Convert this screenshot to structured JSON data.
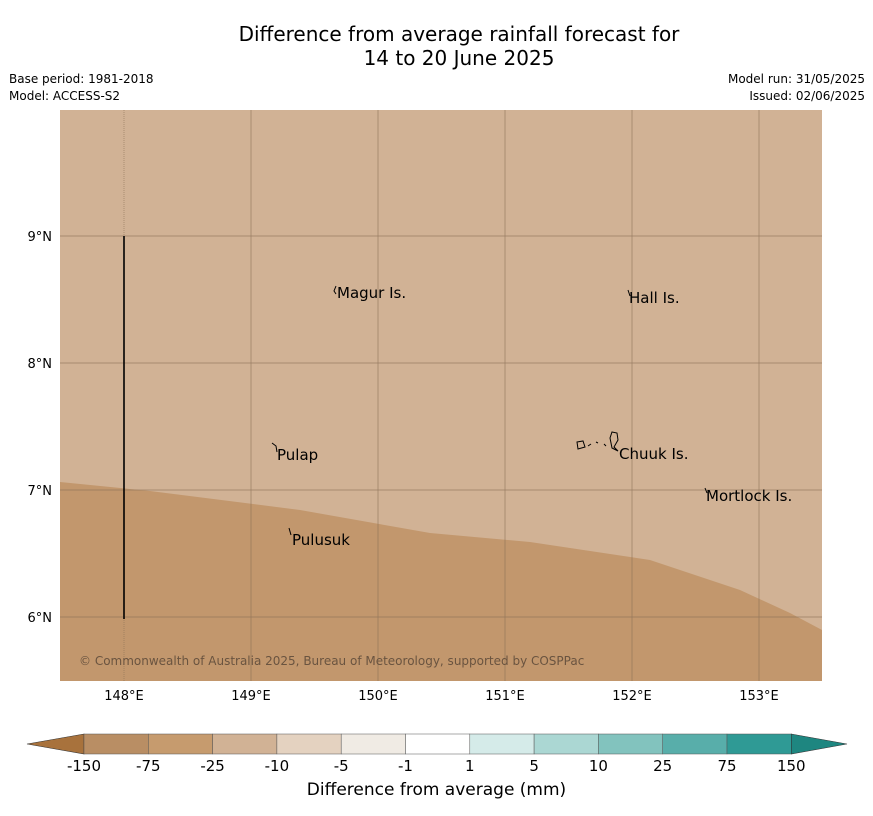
{
  "title": {
    "line1": "Difference from average rainfall forecast for",
    "line2": "14 to 20 June 2025"
  },
  "info_left": {
    "base_period": "Base period: 1981-2018",
    "model": "Model: ACCESS-S2"
  },
  "info_right": {
    "model_run": "Model run: 31/05/2025",
    "issued": "Issued: 02/06/2025"
  },
  "map": {
    "lon_labels": [
      "148°E",
      "149°E",
      "150°E",
      "151°E",
      "152°E",
      "153°E"
    ],
    "lat_labels": [
      "9°N",
      "8°N",
      "7°N",
      "6°N"
    ],
    "place_labels": [
      "Magur Is.",
      "Hall Is.",
      "Pulap",
      "Chuuk Is.",
      "Mortlock Is.",
      "Pulusuk"
    ],
    "copyright": "© Commonwealth of Australia 2025, Bureau of Meteorology, supported by COSPPac",
    "colors": {
      "background_category": "#d1b295",
      "south_category": "#c2976d",
      "grid": "#8a6f56"
    }
  },
  "colorbar": {
    "ticks": [
      "-150",
      "-75",
      "-25",
      "-10",
      "-5",
      "-1",
      "1",
      "5",
      "10",
      "25",
      "75",
      "150"
    ],
    "colors": [
      "#a8723c",
      "#b98e64",
      "#c69b6e",
      "#d1b295",
      "#e4d2c0",
      "#f0ebe4",
      "#ffffff",
      "#d5ebe9",
      "#abd7d3",
      "#82c3be",
      "#58aeaa",
      "#2f9a95",
      "#1e8680"
    ],
    "label": "Difference from average (mm)"
  }
}
